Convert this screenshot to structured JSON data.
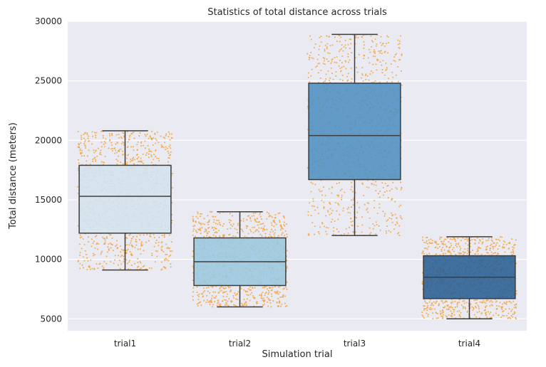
{
  "chart_data": {
    "type": "box",
    "title": "Statistics of total distance across trials",
    "xlabel": "Simulation trial",
    "ylabel": "Total distance (meters)",
    "ylim": [
      4000,
      30000
    ],
    "y_ticks": [
      5000,
      10000,
      15000,
      20000,
      25000,
      30000
    ],
    "grid": true,
    "categories": [
      "trial1",
      "trial2",
      "trial3",
      "trial4"
    ],
    "boxes": [
      {
        "category": "trial1",
        "min": 9100,
        "q1": 12200,
        "median": 15300,
        "q3": 17900,
        "max": 20800,
        "color": "#d3e3ef"
      },
      {
        "category": "trial2",
        "min": 6000,
        "q1": 7800,
        "median": 9800,
        "q3": 11800,
        "max": 14000,
        "color": "#9ac8e0"
      },
      {
        "category": "trial3",
        "min": 12000,
        "q1": 16700,
        "median": 20400,
        "q3": 24800,
        "max": 28900,
        "color": "#4f8fc0"
      },
      {
        "category": "trial4",
        "min": 5000,
        "q1": 6700,
        "median": 8500,
        "q3": 10300,
        "max": 11900,
        "color": "#275e94"
      }
    ],
    "points_color": "#f5a540",
    "background_color": "#eaeaf2"
  }
}
